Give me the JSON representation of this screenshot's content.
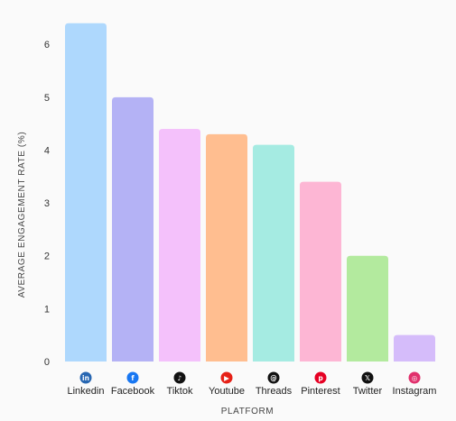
{
  "chart_data": {
    "type": "bar",
    "categories": [
      "Linkedin",
      "Facebook",
      "Tiktok",
      "Youtube",
      "Threads",
      "Pinterest",
      "Twitter",
      "Instagram"
    ],
    "values": [
      6.4,
      5.0,
      4.4,
      4.3,
      4.1,
      3.4,
      2.0,
      0.5
    ],
    "xlabel": "PLATFORM",
    "ylabel": "AVERAGE ENGAGEMENT RATE (%)",
    "ylim": [
      0,
      6.6
    ],
    "yticks": [
      0,
      1,
      2,
      3,
      4,
      5,
      6
    ],
    "grid": false,
    "bar_colors": [
      "#aed8fd",
      "#b4b2f5",
      "#f4c1fb",
      "#ffbe90",
      "#a5ebe2",
      "#fdb6d4",
      "#b3ea9e",
      "#d5bcfa"
    ],
    "icons": [
      {
        "name": "linkedin-icon",
        "color": "#2867b2",
        "glyph": "in"
      },
      {
        "name": "facebook-icon",
        "color": "#1877f2",
        "glyph": "f"
      },
      {
        "name": "tiktok-icon",
        "color": "#111111",
        "glyph": "♪"
      },
      {
        "name": "youtube-icon",
        "color": "#e62117",
        "glyph": "▶"
      },
      {
        "name": "threads-icon",
        "color": "#111111",
        "glyph": "@"
      },
      {
        "name": "pinterest-icon",
        "color": "#e60023",
        "glyph": "p"
      },
      {
        "name": "twitter-x-icon",
        "color": "#111111",
        "glyph": "𝕏"
      },
      {
        "name": "instagram-icon",
        "color": "#e1306c",
        "glyph": "◎"
      }
    ]
  }
}
